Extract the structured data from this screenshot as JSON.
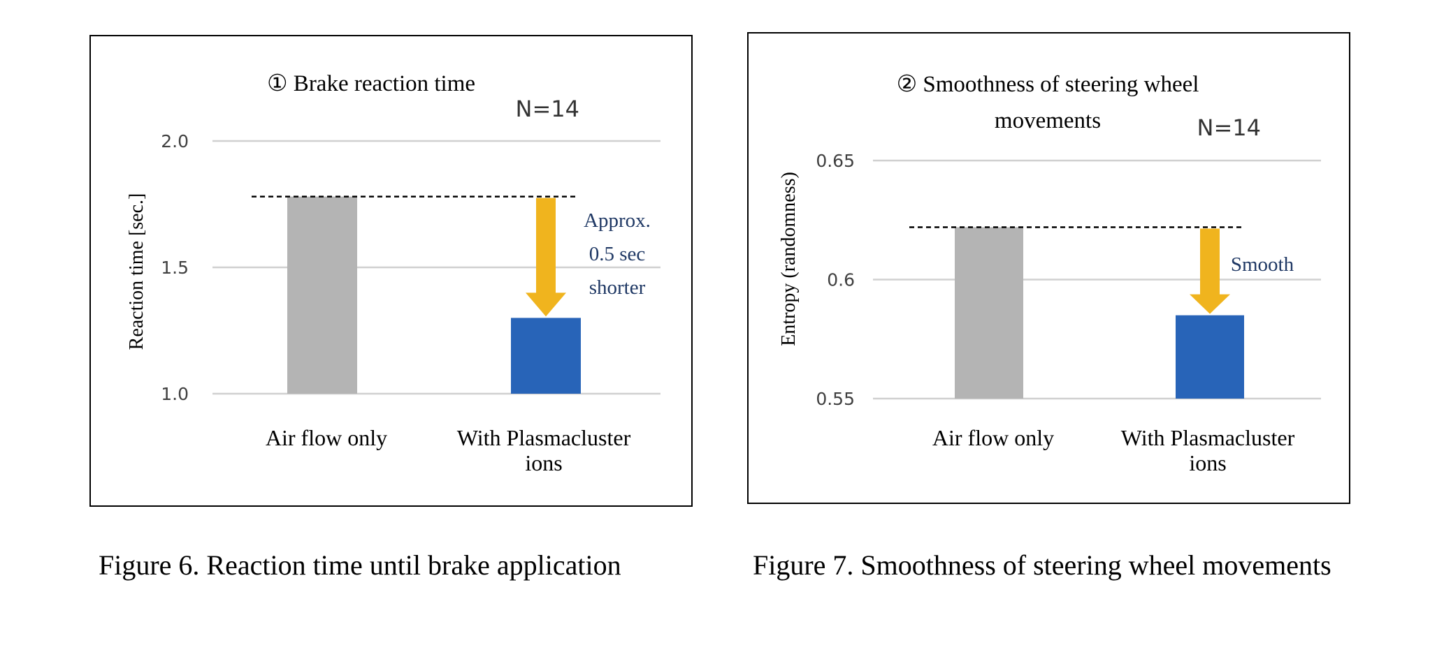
{
  "chart_data": [
    {
      "type": "bar",
      "title": "① Brake reaction time",
      "n_label": "N=14",
      "ylabel": "Reaction time [sec.]",
      "categories": [
        "Air flow only",
        "With Plasmacluster ions"
      ],
      "values": [
        1.78,
        1.3
      ],
      "ylim": [
        1.0,
        2.0
      ],
      "yticks": [
        1.0,
        1.5,
        2.0
      ],
      "ytick_labels": [
        "1.0",
        "1.5",
        "2.0"
      ],
      "colors": [
        "#b4b4b4",
        "#2864b8"
      ],
      "annotation": "Approx. 0.5 sec shorter",
      "annotation_lines": [
        "Approx.",
        "0.5 sec",
        "shorter"
      ],
      "arrow_color": "#f0b41e",
      "grid": true
    },
    {
      "type": "bar",
      "title_lines": [
        "② Smoothness of steering wheel",
        "movements"
      ],
      "n_label": "N=14",
      "ylabel": "Entropy (randomness)",
      "categories": [
        "Air flow only",
        "With Plasmacluster ions"
      ],
      "values": [
        0.622,
        0.585
      ],
      "ylim": [
        0.55,
        0.65
      ],
      "yticks": [
        0.55,
        0.6,
        0.65
      ],
      "ytick_labels": [
        "0.55",
        "0.6",
        "0.65"
      ],
      "colors": [
        "#b4b4b4",
        "#2864b8"
      ],
      "annotation": "Smooth",
      "annotation_lines": [
        "Smooth"
      ],
      "arrow_color": "#f0b41e",
      "grid": true
    }
  ],
  "captions": {
    "fig6": "Figure 6. Reaction time until brake application",
    "fig7": "Figure 7. Smoothness of steering wheel movements"
  }
}
